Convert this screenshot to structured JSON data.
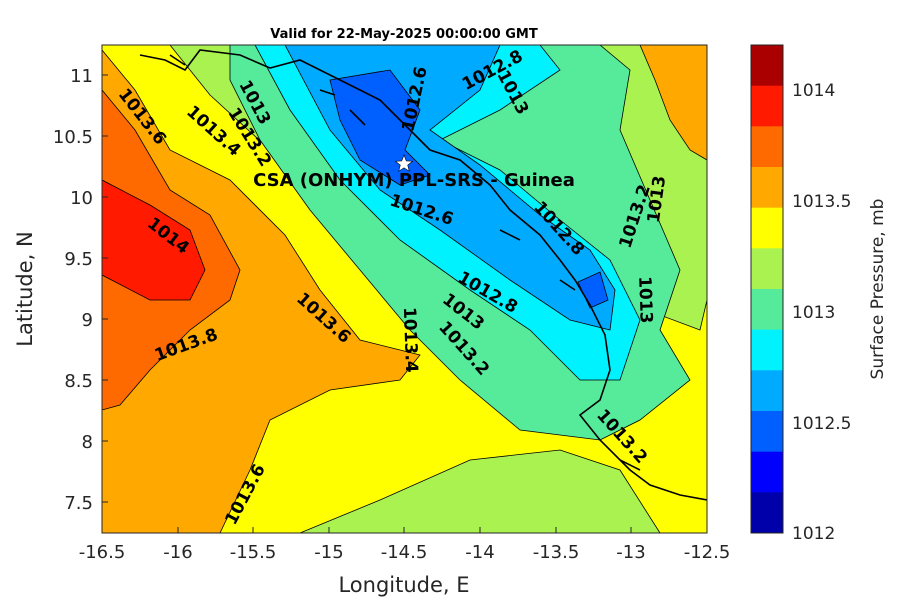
{
  "title": "Valid for 22-May-2025 00:00:00 GMT",
  "xlabel": "Longitude, E",
  "ylabel": "Latitude, N",
  "x_ticks": [
    "-16.5",
    "-16",
    "-15.5",
    "-15",
    "-14.5",
    "-14",
    "-13.5",
    "-13",
    "-12.5"
  ],
  "y_ticks": [
    "11",
    "10.5",
    "10",
    "9.5",
    "9",
    "8.5",
    "8",
    "7.5"
  ],
  "site": {
    "label": "CSA (ONHYM) PPL-SRS  - Guinea",
    "lon": -14.5,
    "lat": 10.28,
    "marker": "star-icon"
  },
  "colorbar": {
    "label": "Surface Pressure, mb",
    "ticks": [
      "1014",
      "1013.5",
      "1013",
      "1012.5",
      "1012"
    ],
    "colors_high_to_low": [
      "#aa0000",
      "#ff1a00",
      "#ff6a00",
      "#ffa800",
      "#ffff00",
      "#aaf24f",
      "#55eb9a",
      "#00f2ff",
      "#00aaff",
      "#0060ff",
      "#0000ff",
      "#0000aa"
    ]
  },
  "contour_labels": [
    "1013.6",
    "1013.4",
    "1013.2",
    "1013",
    "1012.6",
    "1012.8",
    "1013",
    "1012.6",
    "1012.8",
    "1013.2",
    "1013",
    "1014",
    "1012.8",
    "1013",
    "1013.2",
    "1013.6",
    "1013.4",
    "1013",
    "1013.8",
    "1013.2",
    "1013.6"
  ],
  "chart_data": {
    "type": "heatmap",
    "title": "Valid for 22-May-2025 00:00:00 GMT",
    "xlabel": "Longitude, E",
    "ylabel": "Latitude, N",
    "xlim": [
      -16.5,
      -12.5
    ],
    "ylim": [
      7.25,
      11.25
    ],
    "colorbar_range": [
      1012,
      1014.2
    ],
    "colorbar_label": "Surface Pressure, mb",
    "contour_interval": 0.2,
    "approx_values": [
      {
        "lon": -16.3,
        "lat": 9.6,
        "value": 1014.0
      },
      {
        "lon": -14.6,
        "lat": 10.45,
        "value": 1012.4
      },
      {
        "lon": -13.3,
        "lat": 9.2,
        "value": 1012.5
      },
      {
        "lon": -15.0,
        "lat": 8.3,
        "value": 1013.4
      },
      {
        "lon": -12.6,
        "lat": 10.8,
        "value": 1013.6
      }
    ]
  }
}
